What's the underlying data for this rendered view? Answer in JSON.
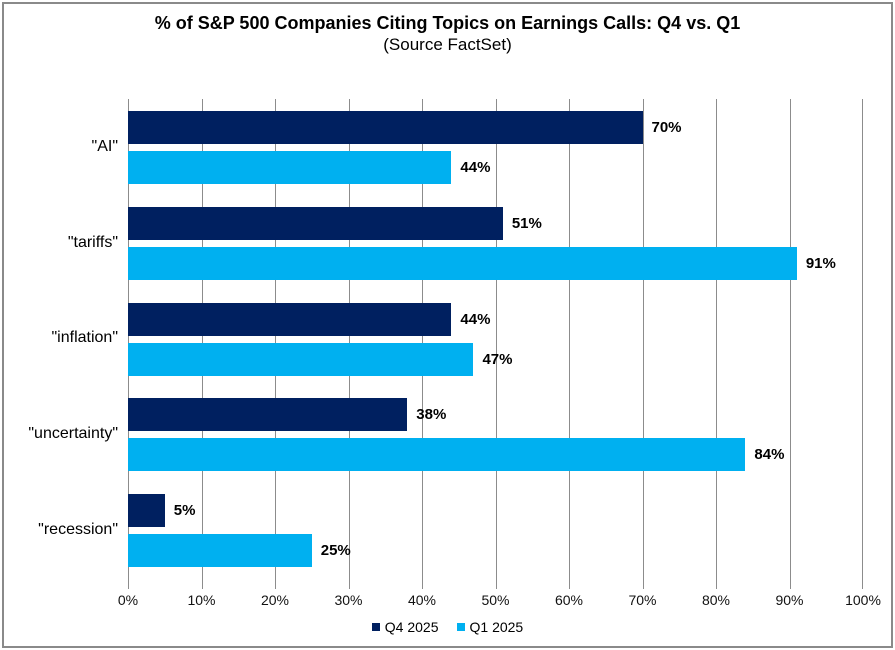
{
  "title": "% of S&P 500 Companies Citing Topics on Earnings Calls: Q4 vs. Q1",
  "subtitle": "(Source FactSet)",
  "chart_data": {
    "type": "bar",
    "orientation": "horizontal",
    "title": "% of S&P 500 Companies Citing Topics on Earnings Calls: Q4 vs. Q1",
    "subtitle": "(Source FactSet)",
    "categories": [
      "\"AI\"",
      "\"tariffs\"",
      "\"inflation\"",
      "\"uncertainty\"",
      "\"recession\""
    ],
    "series": [
      {
        "name": "Q4 2025",
        "color": "#002060",
        "values": [
          70,
          51,
          44,
          38,
          5
        ]
      },
      {
        "name": "Q1 2025",
        "color": "#00b0f0",
        "values": [
          44,
          91,
          47,
          84,
          25
        ]
      }
    ],
    "data_labels": [
      "70%",
      "44%",
      "51%",
      "91%",
      "44%",
      "47%",
      "38%",
      "84%",
      "5%",
      "25%"
    ],
    "value_suffix": "%",
    "xlim": [
      0,
      100
    ],
    "x_tick_labels": [
      "0%",
      "10%",
      "20%",
      "30%",
      "40%",
      "50%",
      "60%",
      "70%",
      "80%",
      "90%",
      "100%"
    ],
    "grid": "vertical-on",
    "legend_position": "bottom-center"
  },
  "colors": {
    "series_q4": "#002060",
    "series_q1": "#00b0f0",
    "gridline": "#8c8c8c",
    "frame_border": "#8a8a8a",
    "text": "#000000"
  }
}
